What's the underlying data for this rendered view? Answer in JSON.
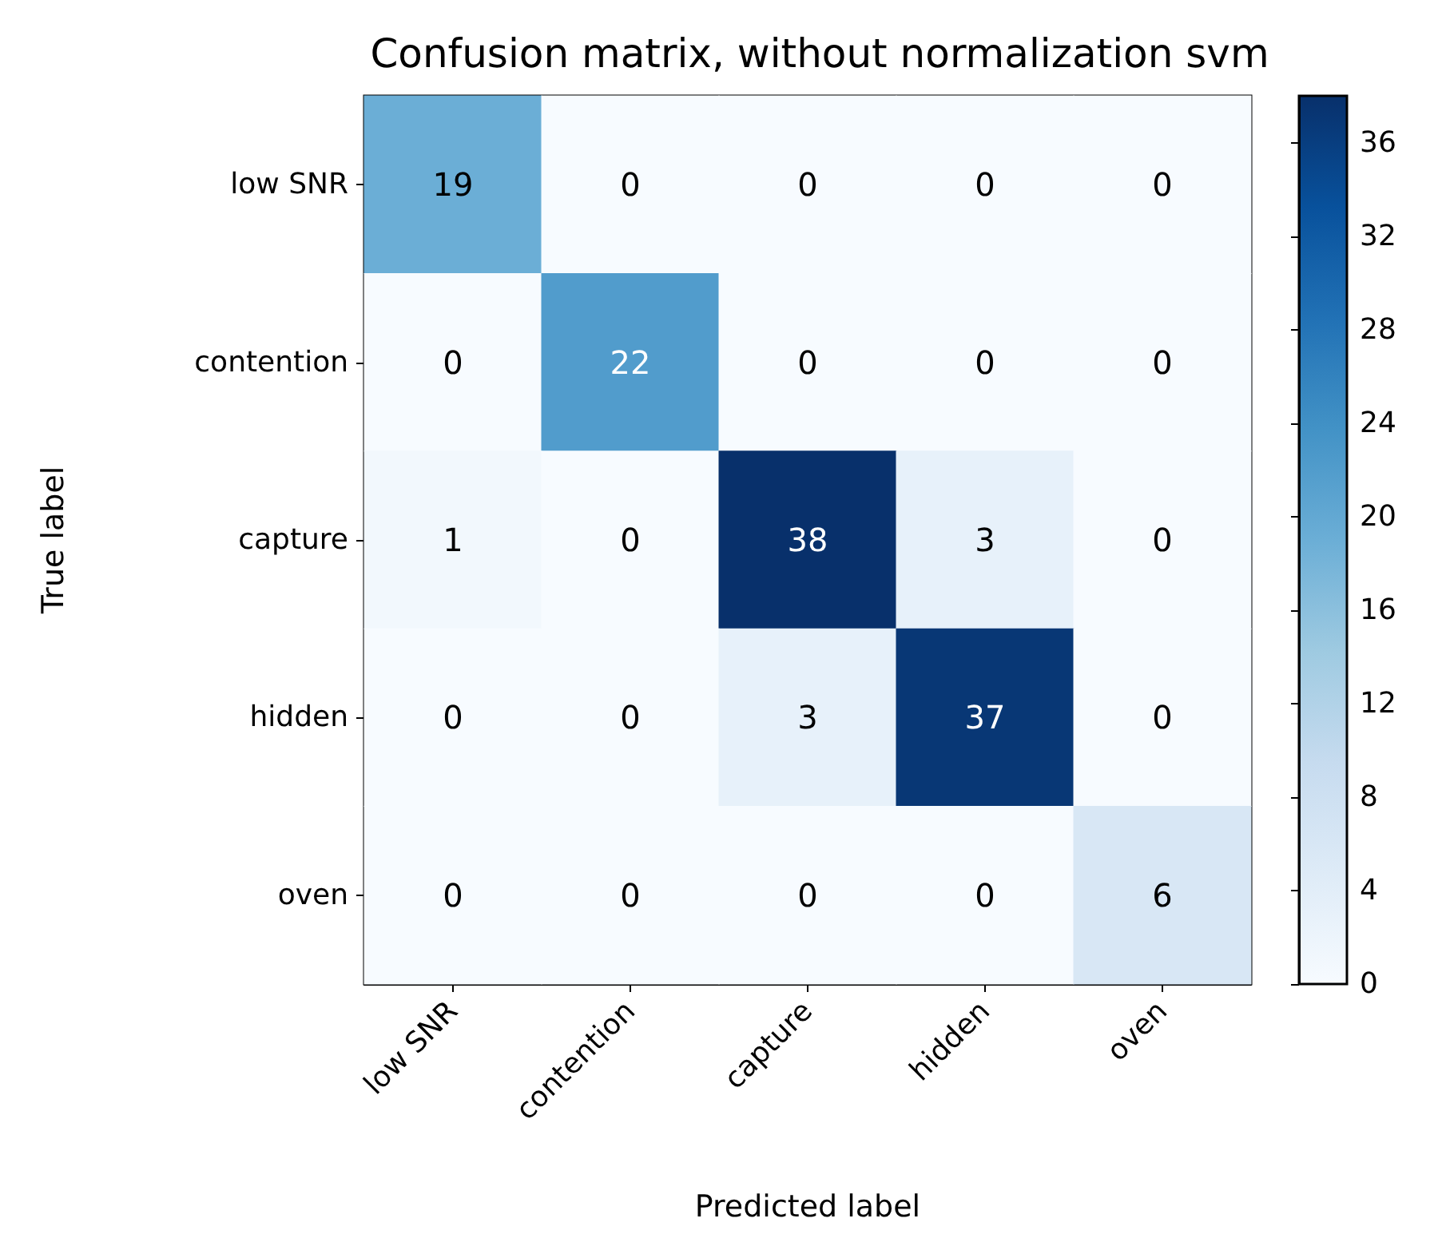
{
  "chart_data": {
    "type": "heatmap",
    "title": "Confusion matrix, without normalization svm",
    "xlabel": "Predicted label",
    "ylabel": "True label",
    "categories": [
      "low SNR",
      "contention",
      "capture",
      "hidden",
      "oven"
    ],
    "y_categories": [
      "low SNR",
      "contention",
      "capture",
      "hidden",
      "oven"
    ],
    "cells": [
      [
        19,
        0,
        0,
        0,
        0
      ],
      [
        0,
        22,
        0,
        0,
        0
      ],
      [
        1,
        0,
        38,
        3,
        0
      ],
      [
        0,
        0,
        3,
        37,
        0
      ],
      [
        0,
        0,
        0,
        0,
        6
      ]
    ],
    "clim": [
      0,
      38
    ],
    "cticks": [
      0,
      4,
      8,
      12,
      16,
      20,
      24,
      28,
      32,
      36
    ],
    "data_labels": true
  }
}
